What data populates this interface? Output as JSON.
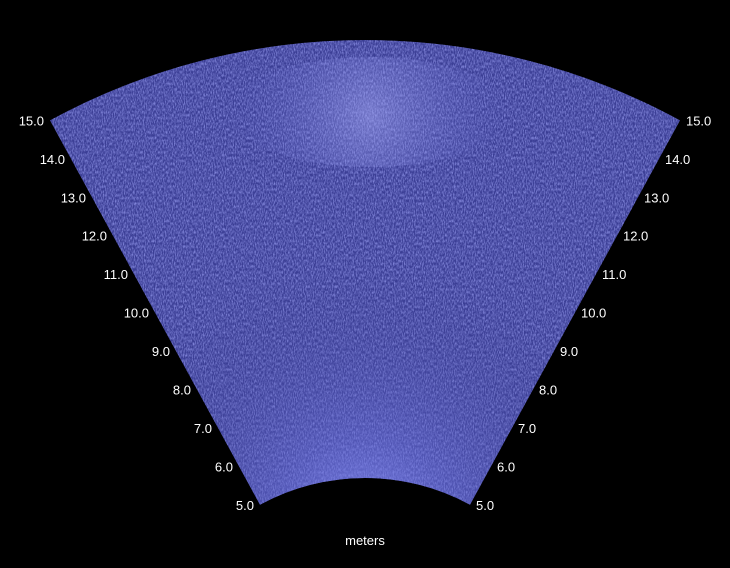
{
  "sonar": {
    "range_min": 5.0,
    "range_max": 15.0,
    "left_ticks": [
      "5.0",
      "6.0",
      "7.0",
      "8.0",
      "9.0",
      "10.0",
      "11.0",
      "12.0",
      "13.0",
      "14.0",
      "15.0"
    ],
    "right_ticks": [
      "5.0",
      "6.0",
      "7.0",
      "8.0",
      "9.0",
      "10.0",
      "11.0",
      "12.0",
      "13.0",
      "14.0",
      "15.0"
    ],
    "unit_label": "meters",
    "colors": {
      "background": "#000000",
      "fan_base": "#3a3c8c",
      "fan_bright": "#9fa4ff",
      "label": "#ffffff"
    }
  }
}
